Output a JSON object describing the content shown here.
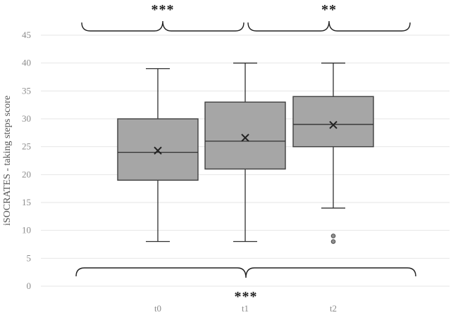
{
  "chart_data": {
    "type": "box",
    "title": "",
    "xlabel": "",
    "ylabel": "iSOCRATES - taking steps score",
    "ylim": [
      0,
      45
    ],
    "yticks": [
      "0",
      "5",
      "10",
      "15",
      "20",
      "25",
      "30",
      "35",
      "40",
      "45"
    ],
    "grid": true,
    "categories": [
      "t0",
      "t1",
      "t2"
    ],
    "boxes": [
      {
        "category": "t0",
        "min": 8,
        "q1": 19,
        "median": 24,
        "q3": 30,
        "max": 39,
        "mean": 24.3,
        "outliers": []
      },
      {
        "category": "t1",
        "min": 8,
        "q1": 21,
        "median": 26,
        "q3": 33,
        "max": 40,
        "mean": 26.6,
        "outliers": []
      },
      {
        "category": "t2",
        "min": 14,
        "q1": 25,
        "median": 29,
        "q3": 34,
        "max": 40,
        "mean": 28.9,
        "outliers": [
          8,
          9
        ]
      }
    ],
    "significance": [
      {
        "from": "t0",
        "to": "t1",
        "label": "***",
        "position": "top"
      },
      {
        "from": "t1",
        "to": "t2",
        "label": "**",
        "position": "top"
      },
      {
        "from": "t0",
        "to": "t2",
        "label": "***",
        "position": "bottom"
      }
    ]
  }
}
